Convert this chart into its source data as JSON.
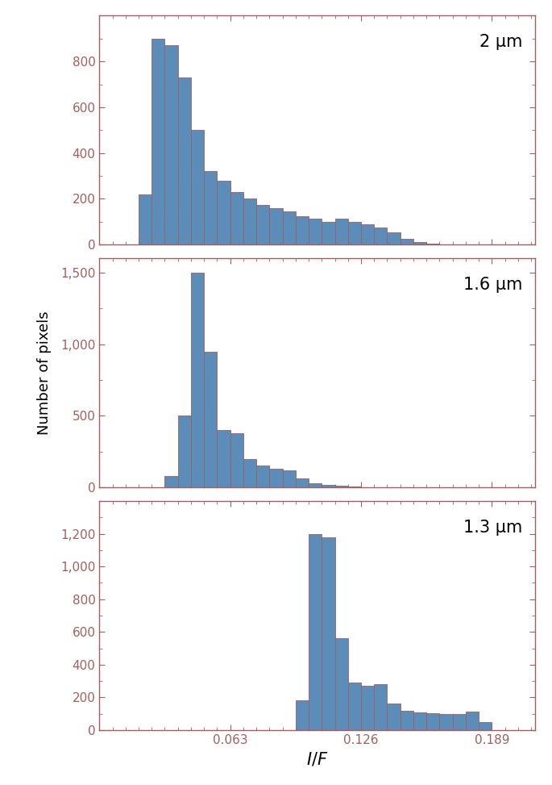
{
  "panels": [
    {
      "label": "2 μm",
      "bar_color": "#5b8db8",
      "edge_color": "#9a6060",
      "bin_left": [
        0.0189,
        0.0252,
        0.0315,
        0.0378,
        0.0441,
        0.0504,
        0.0567,
        0.063,
        0.0693,
        0.0756,
        0.0819,
        0.0882,
        0.0945,
        0.1008,
        0.1071,
        0.1134,
        0.1197,
        0.126,
        0.1323,
        0.1386,
        0.1449,
        0.1512,
        0.1575,
        0.1638
      ],
      "counts": [
        220,
        900,
        870,
        730,
        500,
        320,
        280,
        230,
        200,
        175,
        160,
        145,
        125,
        115,
        100,
        115,
        100,
        90,
        75,
        55,
        25,
        10,
        5,
        2
      ],
      "ylim": [
        0,
        1000
      ],
      "yticks": [
        0,
        200,
        400,
        600,
        800
      ],
      "yticklabels": [
        "0",
        "200",
        "400",
        "600",
        "800"
      ]
    },
    {
      "label": "1.6 μm",
      "bar_color": "#5b8db8",
      "edge_color": "#9a6060",
      "bin_left": [
        0.0315,
        0.0378,
        0.0441,
        0.0504,
        0.0567,
        0.063,
        0.0693,
        0.0756,
        0.0819,
        0.0882,
        0.0945,
        0.1008,
        0.1071,
        0.1134,
        0.1197,
        0.126
      ],
      "counts": [
        80,
        500,
        1500,
        950,
        400,
        380,
        200,
        150,
        130,
        120,
        60,
        30,
        20,
        10,
        5,
        2
      ],
      "ylim": [
        0,
        1600
      ],
      "yticks": [
        0,
        500,
        1000,
        1500
      ],
      "yticklabels": [
        "0",
        "500",
        "1,000",
        "1,500"
      ]
    },
    {
      "label": "1.3 μm",
      "bar_color": "#5b8db8",
      "edge_color": "#9a6060",
      "bin_left": [
        0.0945,
        0.1008,
        0.1071,
        0.1134,
        0.1197,
        0.126,
        0.1323,
        0.1386,
        0.1449,
        0.1512,
        0.1575,
        0.1638,
        0.1701,
        0.1764,
        0.1827
      ],
      "counts": [
        180,
        1200,
        1180,
        560,
        290,
        270,
        280,
        160,
        120,
        110,
        105,
        100,
        100,
        115,
        50
      ],
      "ylim": [
        0,
        1400
      ],
      "yticks": [
        0,
        200,
        400,
        600,
        800,
        1000,
        1200
      ],
      "yticklabels": [
        "0",
        "200",
        "400",
        "600",
        "800",
        "1,000",
        "1,200"
      ]
    }
  ],
  "xlim": [
    0.0,
    0.21
  ],
  "xticks": [
    0.063,
    0.126,
    0.189
  ],
  "xticklabels": [
    "0.063",
    "0.126",
    "0.189"
  ],
  "bin_width": 0.0063,
  "xlabel": "$I/F$",
  "ylabel": "Number of pixels",
  "background_color": "#ffffff",
  "spine_color": "#a06060",
  "tick_color": "#a06060"
}
